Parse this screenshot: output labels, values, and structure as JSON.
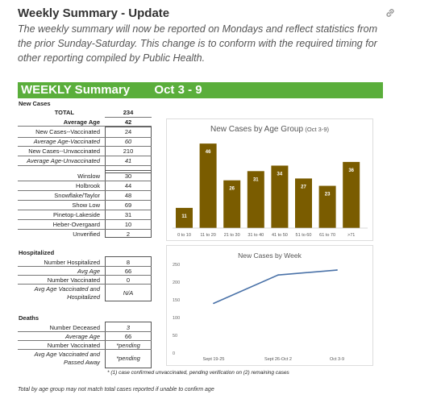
{
  "header": {
    "title": "Weekly Summary - Update",
    "intro": "The weekly summary will now be reported on Mondays and reflect statistics from the prior Sunday-Saturday.  This change is to conform with the required timing for other reporting compiled by Public Health.",
    "link_icon": "link-icon"
  },
  "banner": {
    "label": "WEEKLY Summary",
    "dates": "Oct 3 - 9"
  },
  "new_cases": {
    "heading": "New Cases",
    "rows": [
      {
        "label": "TOTAL",
        "value": "234"
      },
      {
        "label": "Average Age",
        "value": "42"
      },
      {
        "label": "New Cases--Vaccinated",
        "value": "24"
      },
      {
        "label": "Average Age-Vaccinated",
        "value": "60"
      },
      {
        "label": "New Cases--Unvaccinated",
        "value": "210"
      },
      {
        "label": "Average Age-Unvaccinated",
        "value": "41"
      }
    ]
  },
  "locations": [
    {
      "label": "Winslow",
      "value": "30"
    },
    {
      "label": "Holbrook",
      "value": "44"
    },
    {
      "label": "Snowflake/Taylor",
      "value": "48"
    },
    {
      "label": "Show Low",
      "value": "69"
    },
    {
      "label": "Pinetop-Lakeside",
      "value": "31"
    },
    {
      "label": "Heber-Overgaard",
      "value": "10"
    },
    {
      "label": "Unverified",
      "value": "2"
    }
  ],
  "hospitalized": {
    "heading": "Hospitalized",
    "rows": [
      {
        "label": "Number Hospitalized",
        "value": "8"
      },
      {
        "label": "Avg Age",
        "value": "66"
      },
      {
        "label": "Number Vaccinated",
        "value": "0"
      },
      {
        "label": "Avg Age Vaccinated and Hospitalized",
        "value": "N/A"
      }
    ]
  },
  "deaths": {
    "heading": "Deaths",
    "rows": [
      {
        "label": "Number Deceased",
        "value": "3"
      },
      {
        "label": "Average Age",
        "value": "66"
      },
      {
        "label": "Number Vaccinated",
        "value": "*pending"
      },
      {
        "label": "Avg Age Vaccinated and Passed Away",
        "value": "*pending"
      }
    ]
  },
  "footnotes": {
    "note1": "* (1) case confirmed unvaccinated, pending verification on (2) remaining cases",
    "note2": "Total by age group may not match total cases reported if unable to confirm age"
  },
  "colors": {
    "banner": "#5aae3b",
    "bar": "#7a5c00",
    "line": "#4a72a8"
  },
  "chart_data": [
    {
      "type": "bar",
      "title": "New Cases by Age Group",
      "subtitle": "(Oct 3-9)",
      "categories": [
        "0 to 10",
        "11 to 20",
        "21 to 30",
        "31 to 40",
        "41 to 50",
        "51 to 60",
        "61 to 70",
        ">71"
      ],
      "values": [
        11,
        46,
        26,
        31,
        34,
        27,
        23,
        36
      ],
      "ylim": [
        0,
        50
      ],
      "grid": false
    },
    {
      "type": "line",
      "title": "New Cases by Week",
      "categories": [
        "Sept 19-25",
        "Sept 26-Oct 2",
        "Oct 3-9"
      ],
      "values": [
        140,
        220,
        234
      ],
      "ylim": [
        0,
        250
      ],
      "yticks": [
        "0",
        "50",
        "100",
        "150",
        "200",
        "250"
      ],
      "grid": false
    }
  ]
}
